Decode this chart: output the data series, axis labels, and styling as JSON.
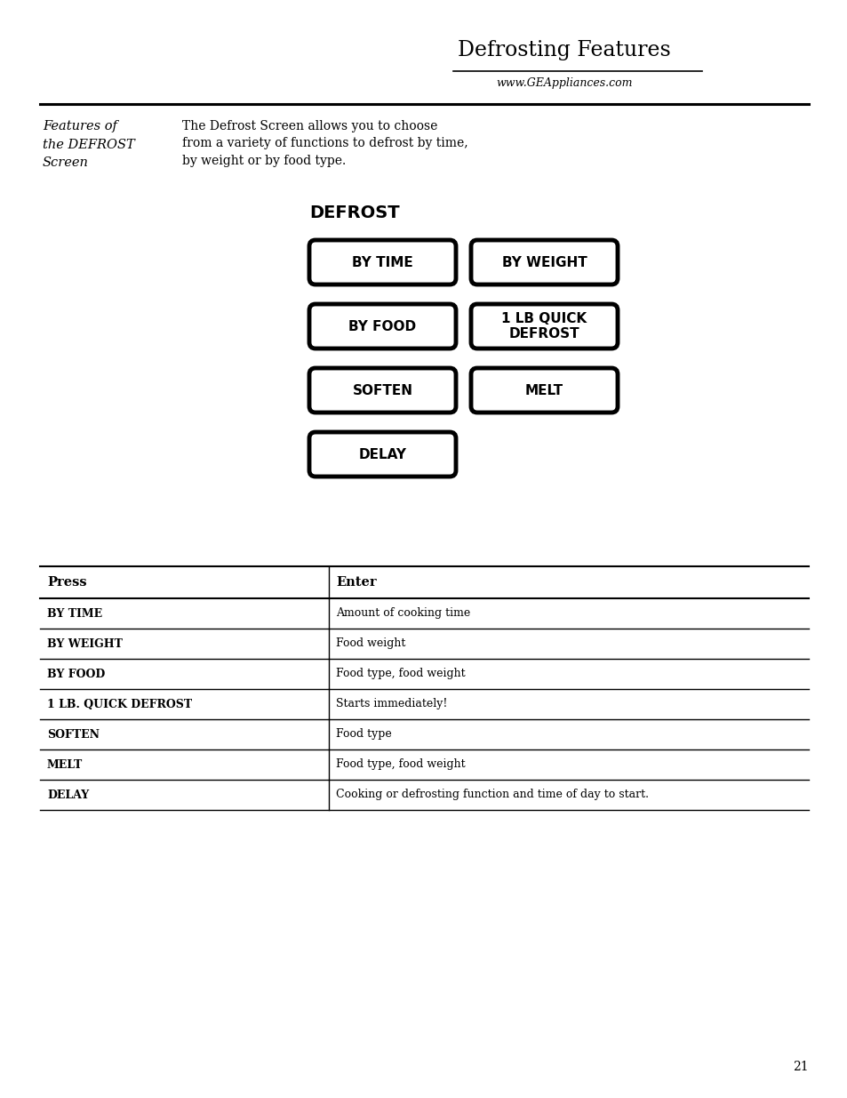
{
  "title": "Defrosting Features",
  "website": "www.GEAppliances.com",
  "sidebar_title": "Features of\nthe DEFROST\nScreen",
  "sidebar_text": "The Defrost Screen allows you to choose\nfrom a variety of functions to defrost by time,\nby weight or by food type.",
  "defrost_label": "DEFROST",
  "buttons": [
    [
      {
        "label": "BY TIME"
      },
      {
        "label": "BY WEIGHT"
      }
    ],
    [
      {
        "label": "BY FOOD"
      },
      {
        "label": "1 LB QUICK\nDEFROST"
      }
    ],
    [
      {
        "label": "SOFTEN"
      },
      {
        "label": "MELT"
      }
    ],
    [
      {
        "label": "DELAY"
      },
      null
    ]
  ],
  "table_header": [
    "Press",
    "Enter"
  ],
  "table_rows": [
    [
      "BY TIME",
      "Amount of cooking time"
    ],
    [
      "BY WEIGHT",
      "Food weight"
    ],
    [
      "BY FOOD",
      "Food type, food weight"
    ],
    [
      "1 LB. QUICK DEFROST",
      "Starts immediately!"
    ],
    [
      "SOFTEN",
      "Food type"
    ],
    [
      "MELT",
      "Food type, food weight"
    ],
    [
      "DELAY",
      "Cooking or defrosting function and time of day to start."
    ]
  ],
  "page_number": "21",
  "bg_color": "#ffffff",
  "text_color": "#000000"
}
